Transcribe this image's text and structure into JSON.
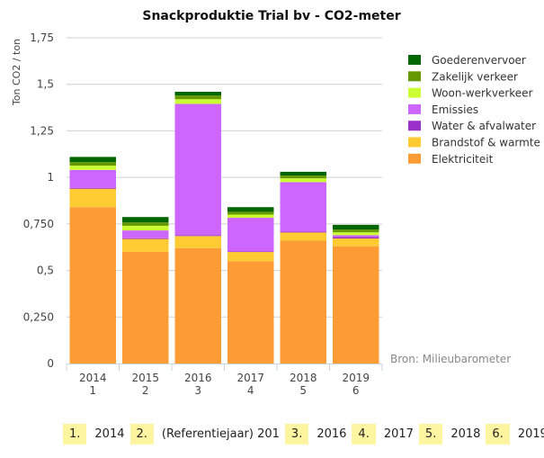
{
  "chart_data": {
    "type": "bar",
    "stacked": true,
    "title": "Snackproduktie Trial bv - CO2-meter",
    "xlabel": "",
    "ylabel": "Ton CO2 / ton",
    "ylim": [
      0,
      1.75
    ],
    "yticks": [
      0,
      0.25,
      0.5,
      0.75,
      1,
      1.25,
      1.5,
      1.75
    ],
    "ytick_labels": [
      "0",
      "0,250",
      "0,5",
      "0,750",
      "1",
      "1,25",
      "1,5",
      "1,75"
    ],
    "grid": true,
    "legend_position": "right",
    "categories": [
      "2014",
      "2015",
      "2016",
      "2017",
      "2018",
      "2019"
    ],
    "category_sublabels": [
      "1",
      "2",
      "3",
      "4",
      "5",
      "6"
    ],
    "series": [
      {
        "name": "Elektriciteit",
        "color": "#fd9b34",
        "values": [
          0.84,
          0.6,
          0.62,
          0.55,
          0.66,
          0.63
        ]
      },
      {
        "name": "Brandstof & warmte",
        "color": "#ffcb33",
        "values": [
          0.1,
          0.07,
          0.065,
          0.05,
          0.045,
          0.042
        ]
      },
      {
        "name": "Water & afvalwater",
        "color": "#9a31c8",
        "values": [
          0.003,
          0.003,
          0.005,
          0.003,
          0.003,
          0.008
        ]
      },
      {
        "name": "Emissies",
        "color": "#cc66ff",
        "values": [
          0.097,
          0.042,
          0.705,
          0.18,
          0.267,
          0.01
        ]
      },
      {
        "name": "Woon-werkverkeer",
        "color": "#ccff33",
        "values": [
          0.023,
          0.025,
          0.025,
          0.017,
          0.02,
          0.015
        ]
      },
      {
        "name": "Zakelijk verkeer",
        "color": "#669900",
        "values": [
          0.019,
          0.018,
          0.02,
          0.015,
          0.015,
          0.015
        ]
      },
      {
        "name": "Goederenvervoer",
        "color": "#006600",
        "values": [
          0.028,
          0.029,
          0.02,
          0.025,
          0.02,
          0.025
        ]
      }
    ],
    "legend_order": [
      "Goederenvervoer",
      "Zakelijk verkeer",
      "Woon-werkverkeer",
      "Emissies",
      "Water & afvalwater",
      "Brandstof & warmte",
      "Elektriciteit"
    ],
    "annotation": "Bron: Milieubarometer"
  },
  "footer": {
    "items": [
      {
        "num": "1.",
        "label": "2014"
      },
      {
        "num": "2.",
        "label": "(Referentiejaar) 201"
      },
      {
        "num": "3.",
        "label": "2016"
      },
      {
        "num": "4.",
        "label": "2017"
      },
      {
        "num": "5.",
        "label": "2018"
      },
      {
        "num": "6.",
        "label": "2019"
      }
    ]
  }
}
